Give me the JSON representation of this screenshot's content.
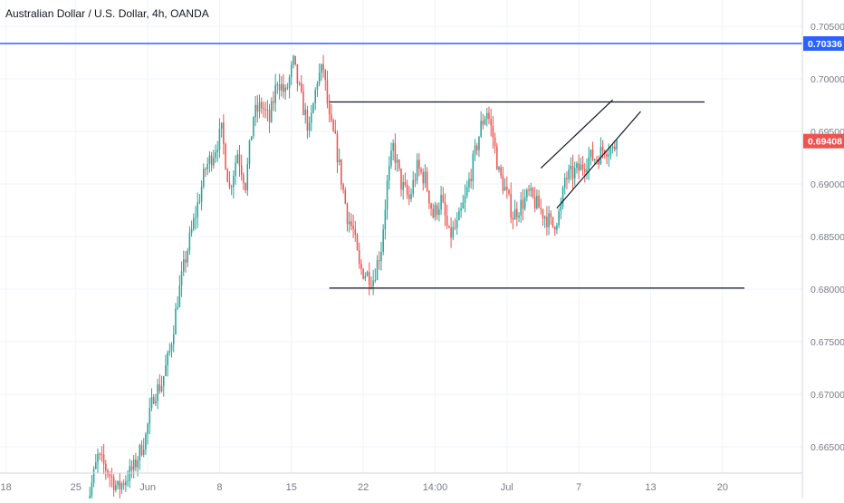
{
  "chart_data": {
    "type": "candlestick",
    "title": "Australian Dollar / U.S. Dollar, 4h, OANDA",
    "colors": {
      "up": "#26a69a",
      "down": "#ef5350",
      "horizontal_line": "#2962ff",
      "trendline": "#131722",
      "grid": "#f0f3fa",
      "axis_text": "#787b86",
      "price_badge_bg": "#ef5350",
      "horizontal_badge_bg": "#2962ff"
    },
    "y_axis": {
      "min": 0.6625,
      "max": 0.7075,
      "ticks": [
        "0.70500",
        "0.70000",
        "0.69500",
        "0.69000",
        "0.68500",
        "0.68000",
        "0.67500",
        "0.67000",
        "0.66500"
      ],
      "tick_values": [
        0.705,
        0.7,
        0.695,
        0.69,
        0.685,
        0.68,
        0.675,
        0.67,
        0.665
      ]
    },
    "x_axis": {
      "labels": [
        "18",
        "25",
        "Jun",
        "8",
        "15",
        "22",
        "14:00",
        "Jul",
        "7",
        "13",
        "20"
      ],
      "label_index": [
        -20,
        15,
        51,
        87,
        123,
        159,
        195,
        231,
        267,
        303,
        339
      ]
    },
    "index_range": [
      -23,
      379
    ],
    "last_price": {
      "value": 0.69408,
      "label": "0.69408"
    },
    "horizontal_line": {
      "value": 0.70336,
      "label": "0.70336"
    },
    "annotations": [
      {
        "type": "segment",
        "from": [
          142,
          0.6978
        ],
        "to": [
          330,
          0.6978
        ]
      },
      {
        "type": "segment",
        "from": [
          142,
          0.6801
        ],
        "to": [
          350,
          0.6801
        ]
      },
      {
        "type": "segment",
        "from": [
          248,
          0.6915
        ],
        "to": [
          284,
          0.698
        ]
      },
      {
        "type": "segment",
        "from": [
          256,
          0.6877
        ],
        "to": [
          298,
          0.6969
        ]
      }
    ],
    "waypoints": [
      [
        20,
        0.659
      ],
      [
        26,
        0.664
      ],
      [
        30,
        0.663
      ],
      [
        36,
        0.661
      ],
      [
        44,
        0.663
      ],
      [
        50,
        0.666
      ],
      [
        54,
        0.67
      ],
      [
        58,
        0.671
      ],
      [
        62,
        0.674
      ],
      [
        66,
        0.679
      ],
      [
        70,
        0.683
      ],
      [
        76,
        0.688
      ],
      [
        80,
        0.6915
      ],
      [
        84,
        0.693
      ],
      [
        88,
        0.695
      ],
      [
        92,
        0.6895
      ],
      [
        96,
        0.693
      ],
      [
        100,
        0.69
      ],
      [
        104,
        0.6965
      ],
      [
        108,
        0.6975
      ],
      [
        112,
        0.696
      ],
      [
        116,
        0.7
      ],
      [
        120,
        0.6985
      ],
      [
        124,
        0.7015
      ],
      [
        128,
        0.698
      ],
      [
        132,
        0.695
      ],
      [
        136,
        0.7
      ],
      [
        139,
        0.701
      ],
      [
        142,
        0.696
      ],
      [
        145,
        0.694
      ],
      [
        148,
        0.6905
      ],
      [
        151,
        0.687
      ],
      [
        154,
        0.6855
      ],
      [
        157,
        0.682
      ],
      [
        160,
        0.6815
      ],
      [
        164,
        0.681
      ],
      [
        168,
        0.684
      ],
      [
        171,
        0.69
      ],
      [
        174,
        0.6935
      ],
      [
        178,
        0.69
      ],
      [
        182,
        0.6885
      ],
      [
        186,
        0.6915
      ],
      [
        190,
        0.6905
      ],
      [
        194,
        0.687
      ],
      [
        198,
        0.6885
      ],
      [
        202,
        0.685
      ],
      [
        206,
        0.686
      ],
      [
        210,
        0.6885
      ],
      [
        214,
        0.692
      ],
      [
        218,
        0.6955
      ],
      [
        221,
        0.697
      ],
      [
        224,
        0.6945
      ],
      [
        227,
        0.691
      ],
      [
        230,
        0.6895
      ],
      [
        234,
        0.687
      ],
      [
        238,
        0.688
      ],
      [
        242,
        0.689
      ],
      [
        246,
        0.688
      ],
      [
        250,
        0.687
      ],
      [
        254,
        0.686
      ],
      [
        258,
        0.6875
      ],
      [
        260,
        0.6905
      ],
      [
        264,
        0.691
      ],
      [
        268,
        0.6915
      ],
      [
        272,
        0.6925
      ],
      [
        276,
        0.6925
      ],
      [
        280,
        0.6935
      ],
      [
        284,
        0.6932
      ],
      [
        286,
        0.6941
      ]
    ]
  }
}
